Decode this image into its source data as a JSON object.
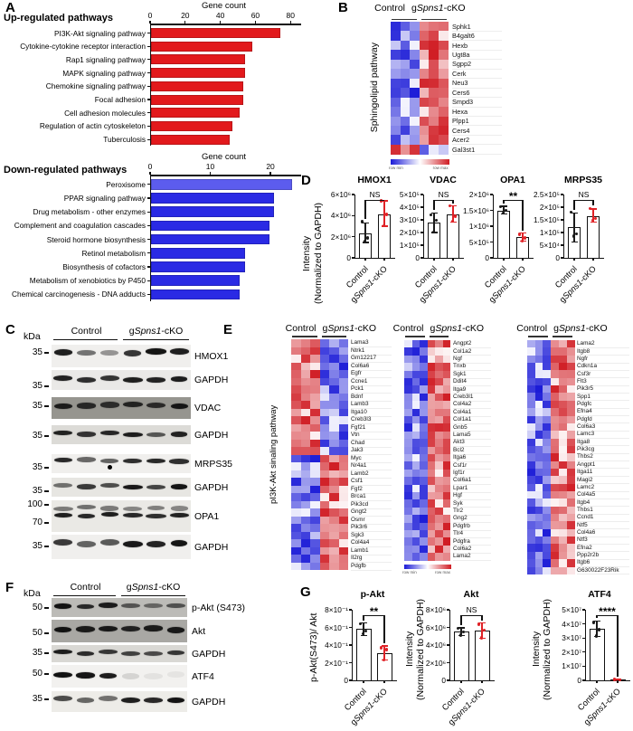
{
  "panels": {
    "a": "A",
    "b": "B",
    "c": "C",
    "d": "D",
    "e": "E",
    "f": "F",
    "g": "G"
  },
  "labels": {
    "kda": "kDa",
    "control": "Control",
    "cko": "gSpns1-cKO",
    "intensity_ylabel": [
      "Intensity",
      "(Normalized to GAPDH)"
    ],
    "row_min": "row min",
    "row_max": "row max"
  },
  "colors": {
    "up_bar": "#e2191c",
    "down_bar": "#2a2ae4",
    "down_bar_alt": "#5c5cee",
    "heat_red": "#d01d24",
    "heat_blue": "#1b1bd7",
    "point_control": "#1a1a1a",
    "point_cko": "#e02227",
    "axis": "#111111"
  },
  "chart_data": [
    {
      "id": "up-pathways",
      "type": "bar",
      "orientation": "horizontal",
      "title": "Up-regulated pathways",
      "axis_title": "Gene count",
      "xlim": [
        0,
        84
      ],
      "xticks": [
        0,
        20,
        40,
        60,
        80
      ],
      "categories": [
        "PI3K-Akt signaling pathway",
        "Cytokine-cytokine receptor interaction",
        "Rap1 signaling pathway",
        "MAPK signaling pathway",
        "Chemokine signaling pathway",
        "Focal adhesion",
        "Cell adhesion molecules",
        "Regulation of actin cytoskeleton",
        "Tuberculosis"
      ],
      "values": [
        74,
        58,
        54,
        54,
        53,
        53,
        51,
        47,
        45
      ]
    },
    {
      "id": "down-pathways",
      "type": "bar",
      "orientation": "horizontal",
      "title": "Down-regulated pathways",
      "axis_title": "Gene count",
      "xlim": [
        0,
        24.5
      ],
      "xticks": [
        0,
        10,
        20
      ],
      "categories": [
        "Peroxisome",
        "PPAR signaling pathway",
        "Drug metabolism - other enzymes",
        "Complement and coagulation cascades",
        "Steroid hormone biosynthesis",
        "Retinol metabolism",
        "Biosynthesis of cofactors",
        "Metabolism of xenobiotics by P450",
        "Chemical carcinogenesis - DNA adducts"
      ],
      "values": [
        23.5,
        20.5,
        20.5,
        19.8,
        19.8,
        15.8,
        15.8,
        14.8,
        14.8
      ],
      "first_bar_alt_color": true
    },
    {
      "id": "heatmap-sphingolipid",
      "type": "heatmap",
      "row_label": "Sphingolipid pathway",
      "col_groups": [
        "Control",
        "gSpns1-cKO"
      ],
      "cols_per_group": 3,
      "colorbar": true,
      "genes": [
        "Sphk1",
        "B4galt6",
        "Hexb",
        "Ugt8a",
        "Sgpp2",
        "Cerk",
        "Neu3",
        "Cers6",
        "Smpd3",
        "Hexa",
        "Plpp1",
        "Cers4",
        "Acer2",
        "Gal3st1"
      ],
      "direction": [
        1,
        1,
        1,
        1,
        1,
        1,
        1,
        1,
        1,
        1,
        1,
        1,
        1,
        -1
      ]
    },
    {
      "id": "heatmap-pi3k-1",
      "type": "heatmap",
      "row_label": "pI3K-Akt sinaling pathway",
      "col_groups": [
        "Control",
        "gSpns1-cKO"
      ],
      "cols_per_group": 3,
      "colorbar": false,
      "genes": [
        "Lama3",
        "Ntrk1",
        "Gm12217",
        "Col6a6",
        "Egfr",
        "Ccne1",
        "Pck1",
        "Bdnf",
        "Lamb3",
        "Itga10",
        "Creb3l3",
        "Fgf21",
        "Vtn",
        "Chad",
        "Jak3",
        "Myc",
        "Nr4a1",
        "Lamb2",
        "Csf1",
        "Fgf2",
        "Brca1",
        "Pik3cd",
        "Gngt2",
        "Osmr",
        "Pik3r6",
        "Sgk3",
        "Col4a4",
        "Lamb1",
        "Il2rg",
        "Pdgfb"
      ],
      "direction": [
        -1,
        -1,
        -1,
        -1,
        -1,
        -1,
        -1,
        -1,
        -1,
        -1,
        -1,
        -1,
        -1,
        -1,
        -1,
        1,
        1,
        1,
        1,
        1,
        1,
        1,
        1,
        1,
        1,
        1,
        1,
        1,
        1,
        1
      ]
    },
    {
      "id": "heatmap-pi3k-2",
      "type": "heatmap",
      "row_label": "",
      "col_groups": [
        "Control",
        "gSpns1-cKO"
      ],
      "cols_per_group": 3,
      "colorbar": true,
      "genes": [
        "Angpt2",
        "Col1a2",
        "Ngf",
        "Tnxb",
        "Sgk1",
        "Ddit4",
        "Itga9",
        "Creb3l1",
        "Col4a2",
        "Col4a1",
        "Col1a1",
        "Gnb5",
        "Lama5",
        "Akt3",
        "Bcl2",
        "Itga6",
        "Csf1r",
        "Igf1r",
        "Col6a1",
        "Lpar1",
        "Hgf",
        "Syk",
        "Tlr2",
        "Gng2",
        "Pdgfrb",
        "Tlr4",
        "Pdgfra",
        "Col6a2",
        "Lama2"
      ],
      "direction": [
        1,
        1,
        1,
        1,
        1,
        1,
        1,
        1,
        1,
        1,
        1,
        1,
        1,
        1,
        1,
        1,
        1,
        1,
        1,
        1,
        1,
        1,
        1,
        1,
        1,
        1,
        1,
        1,
        1
      ]
    },
    {
      "id": "heatmap-pi3k-3",
      "type": "heatmap",
      "row_label": "",
      "col_groups": [
        "Control",
        "gSpns1-cKO"
      ],
      "cols_per_group": 3,
      "colorbar": false,
      "genes": [
        "Lama2",
        "Itgb8",
        "Ngfr",
        "Cdkn1a",
        "Csf3r",
        "Flt3",
        "Pik3r5",
        "Spp1",
        "Pdgfc",
        "Efna4",
        "Pdgfd",
        "Col6a3",
        "Lamc3",
        "Itga8",
        "Pik3cg",
        "Thbs2",
        "Angpt1",
        "Itga11",
        "Magi2",
        "Lamc2",
        "Col4a5",
        "Itgb4",
        "Thbs1",
        "Ccnd1",
        "Ntf5",
        "Col4a6",
        "Ntf3",
        "Efna2",
        "Ppp2r2b",
        "Itgb6",
        "G630022F23Rik"
      ],
      "direction": [
        1,
        1,
        1,
        1,
        1,
        1,
        1,
        1,
        1,
        1,
        1,
        1,
        1,
        1,
        1,
        1,
        1,
        1,
        1,
        1,
        1,
        1,
        1,
        1,
        1,
        1,
        1,
        1,
        1,
        1,
        1
      ]
    },
    {
      "id": "d-hmox1",
      "type": "bar-scatter",
      "title": "HMOX1",
      "sig": "NS",
      "ymax": 6000000.0,
      "yticks": [
        [
          0,
          "0"
        ],
        [
          2000000.0,
          "2×10⁶"
        ],
        [
          4000000.0,
          "4×10⁶"
        ],
        [
          6000000.0,
          "6×10⁶"
        ]
      ],
      "groups": [
        "Control",
        "gSpns1-cKO"
      ],
      "means": [
        2300000.0,
        4150000.0
      ],
      "errors": [
        [
          1450000.0,
          3300000.0
        ],
        [
          3000000.0,
          5400000.0
        ]
      ],
      "points": [
        [
          3450000.0,
          1900000.0,
          1550000.0
        ],
        [
          5400000.0,
          4100000.0,
          3050000.0
        ]
      ]
    },
    {
      "id": "d-vdac",
      "type": "bar-scatter",
      "title": "VDAC",
      "sig": "NS",
      "ymax": 500000.0,
      "yticks": [
        [
          0,
          "0"
        ],
        [
          100000.0,
          "1×10⁵"
        ],
        [
          200000.0,
          "2×10⁵"
        ],
        [
          300000.0,
          "3×10⁵"
        ],
        [
          400000.0,
          "4×10⁵"
        ],
        [
          500000.0,
          "5×10⁵"
        ]
      ],
      "groups": [
        "Control",
        "gSpns1-cKO"
      ],
      "means": [
        280000.0,
        340000.0
      ],
      "errors": [
        [
          200000.0,
          355000.0
        ],
        [
          285000.0,
          410000.0
        ]
      ],
      "points": [
        [
          340000.0,
          295000.0,
          205000.0
        ],
        [
          410000.0,
          330000.0,
          290000.0
        ]
      ]
    },
    {
      "id": "d-opa1",
      "type": "bar-scatter",
      "title": "OPA1",
      "sig": "**",
      "ymax": 2000000.0,
      "yticks": [
        [
          0,
          "0"
        ],
        [
          500000.0,
          "5×10⁵"
        ],
        [
          1000000.0,
          "1×10⁶"
        ],
        [
          1500000.0,
          "1.5×10⁶"
        ],
        [
          2000000.0,
          "2×10⁶"
        ]
      ],
      "groups": [
        "Control",
        "gSpns1-cKO"
      ],
      "means": [
        1500000.0,
        650000.0
      ],
      "errors": [
        [
          1380000.0,
          1630000.0
        ],
        [
          520000.0,
          780000.0
        ]
      ],
      "points": [
        [
          1620000.0,
          1500000.0,
          1420000.0
        ],
        [
          750000.0,
          630000.0,
          530000.0
        ]
      ]
    },
    {
      "id": "d-mrps35",
      "type": "bar-scatter",
      "title": "MRPS35",
      "sig": "NS",
      "ymax": 250000.0,
      "yticks": [
        [
          0,
          "0"
        ],
        [
          50000.0,
          "5×10⁴"
        ],
        [
          100000.0,
          "1×10⁵"
        ],
        [
          150000.0,
          "1.5×10⁵"
        ],
        [
          200000.0,
          "2×10⁵"
        ],
        [
          250000.0,
          "2.5×10⁵"
        ]
      ],
      "groups": [
        "Control",
        "gSpns1-cKO"
      ],
      "means": [
        120000.0,
        165000.0
      ],
      "errors": [
        [
          63000.0,
          177000.0
        ],
        [
          142000.0,
          193000.0
        ]
      ],
      "points": [
        [
          180000.0,
          95000.0,
          85000.0
        ],
        [
          195000.0,
          155000.0,
          148000.0
        ]
      ]
    },
    {
      "id": "g-pakt",
      "type": "bar-scatter",
      "title": "p-Akt",
      "sig": "**",
      "ymax": 0.8,
      "yticks": [
        [
          0,
          "0"
        ],
        [
          0.2,
          "2×10⁻¹"
        ],
        [
          0.4,
          "4×10⁻¹"
        ],
        [
          0.6,
          "6×10⁻¹"
        ],
        [
          0.8,
          "8×10⁻¹"
        ]
      ],
      "groups": [
        "Control",
        "gSpns1-cKO"
      ],
      "ylabel_lines": [
        "p-Akt(S473)/ Akt"
      ],
      "means": [
        0.58,
        0.31
      ],
      "errors": [
        [
          0.51,
          0.65
        ],
        [
          0.23,
          0.39
        ]
      ],
      "points": [
        [
          0.64,
          0.56,
          0.53
        ],
        [
          0.37,
          0.35,
          0.23
        ]
      ]
    },
    {
      "id": "g-akt",
      "type": "bar-scatter",
      "title": "Akt",
      "sig": "NS",
      "ymax": 8000000.0,
      "yticks": [
        [
          0,
          "0"
        ],
        [
          2000000.0,
          "2×10⁶"
        ],
        [
          4000000.0,
          "4×10⁶"
        ],
        [
          6000000.0,
          "6×10⁶"
        ],
        [
          8000000.0,
          "8×10⁶"
        ]
      ],
      "groups": [
        "Control",
        "gSpns1-cKO"
      ],
      "ylabel_lines": [
        "Intensity",
        "(Normalized to GAPDH)"
      ],
      "means": [
        5500000.0,
        5650000.0
      ],
      "errors": [
        [
          5050000.0,
          5950000.0
        ],
        [
          4800000.0,
          6500000.0
        ]
      ],
      "points": [
        [
          5900000.0,
          5500000.0,
          5150000.0
        ],
        [
          6350000.0,
          5700000.0,
          4850000.0
        ]
      ]
    },
    {
      "id": "g-atf4",
      "type": "bar-scatter",
      "title": "ATF4",
      "sig": "****",
      "ymax": 50000000.0,
      "yticks": [
        [
          0,
          "0"
        ],
        [
          10000000.0,
          "1×10⁷"
        ],
        [
          20000000.0,
          "2×10⁷"
        ],
        [
          30000000.0,
          "3×10⁷"
        ],
        [
          40000000.0,
          "4×10⁷"
        ],
        [
          50000000.0,
          "5×10⁷"
        ]
      ],
      "groups": [
        "Control",
        "gSpns1-cKO"
      ],
      "ylabel_lines": [
        "Intensity",
        "(Normalized to GAPDH)"
      ],
      "means": [
        36500000.0,
        400000.0
      ],
      "errors": [
        [
          31000000.0,
          42000000.0
        ],
        [
          100000.0,
          900000.0
        ]
      ],
      "points": [
        [
          41000000.0,
          36000000.0,
          31500000.0
        ],
        [
          600000.0,
          400000.0,
          300000.0
        ]
      ]
    }
  ],
  "panel_c": {
    "blots": [
      {
        "label": "HMOX1",
        "markers": [
          "35"
        ],
        "bg": "#f0efed",
        "bands": [
          [
            0.92,
            0.55,
            0.4,
            0.82,
            0.97,
            0.92
          ]
        ]
      },
      {
        "label": "GAPDH",
        "markers": [
          "35"
        ],
        "bg": "#eae9e7",
        "bands": [
          [
            0.9,
            0.85,
            0.82,
            0.92,
            0.9,
            0.93
          ]
        ]
      },
      {
        "label": "VDAC",
        "markers": [
          "35"
        ],
        "bg": "#96958f",
        "bands": [
          [
            0.9,
            0.82,
            0.78,
            0.85,
            0.8,
            0.95
          ]
        ]
      },
      {
        "label": "GAPDH",
        "markers": [
          "35"
        ],
        "bg": "#dcdbd7",
        "bands": [
          [
            0.9,
            0.82,
            0.88,
            0.93,
            0.65,
            0.9
          ]
        ]
      },
      {
        "label": "MRPS35",
        "markers": [
          "35"
        ],
        "bg": "#f0efed",
        "bands": [
          [
            0.88,
            0.6,
            0.62,
            0.85,
            0.88,
            0.85
          ]
        ],
        "artifact_dot": true
      },
      {
        "label": "GAPDH",
        "markers": [
          "35"
        ],
        "bg": "#e7e6e2",
        "bands": [
          [
            0.55,
            0.8,
            0.7,
            0.95,
            0.75,
            0.97
          ]
        ]
      },
      {
        "label": "OPA1",
        "markers": [
          "100",
          "70"
        ],
        "bg": "#eae9e5",
        "bands": [
          [
            0.5,
            0.55,
            0.5,
            0.45,
            0.48,
            0.45
          ],
          [
            0.92,
            0.88,
            0.92,
            0.88,
            0.85,
            0.9
          ]
        ]
      },
      {
        "label": "GAPDH",
        "markers": [
          "35"
        ],
        "bg": "#f0efed",
        "bands": [
          [
            0.8,
            0.62,
            0.66,
            0.95,
            0.9,
            0.97
          ]
        ]
      }
    ]
  },
  "panel_f": {
    "blots": [
      {
        "label": "p-Akt (S473)",
        "markers": [
          "50"
        ],
        "bg": "#bcbbb7",
        "bands": [
          [
            0.97,
            0.85,
            0.92,
            0.6,
            0.5,
            0.62
          ]
        ]
      },
      {
        "label": "Akt",
        "markers": [
          "50"
        ],
        "bg": "#a9a8a4",
        "bands": [
          [
            0.97,
            0.92,
            0.93,
            0.88,
            0.92,
            0.93
          ]
        ]
      },
      {
        "label": "GAPDH",
        "markers": [
          "35"
        ],
        "bg": "#d9d8d4",
        "bands": [
          [
            0.92,
            0.85,
            0.8,
            0.75,
            0.7,
            0.8
          ]
        ]
      },
      {
        "label": "ATF4",
        "markers": [
          "50"
        ],
        "bg": "#f2f1ef",
        "bands": [
          [
            0.98,
            0.96,
            0.93,
            0.12,
            0.06,
            0.05
          ]
        ]
      },
      {
        "label": "GAPDH",
        "markers": [
          "35"
        ],
        "bg": "#edece8",
        "bands": [
          [
            0.72,
            0.6,
            0.55,
            0.92,
            0.88,
            0.97
          ]
        ]
      }
    ]
  }
}
